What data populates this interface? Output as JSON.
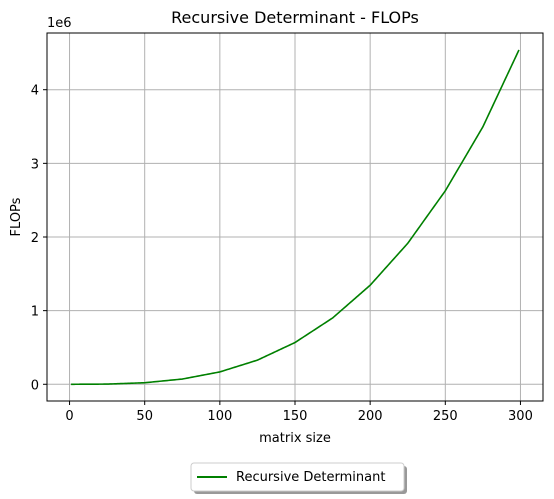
{
  "chart_data": {
    "type": "line",
    "title": "Recursive Determinant - FLOPs",
    "xlabel": "matrix size",
    "ylabel": "FLOPs",
    "y_offset_label": "1e6",
    "y_scale_factor": 1000000,
    "xlim": [
      -15,
      315
    ],
    "ylim": [
      -0.227,
      4.77
    ],
    "x_ticks": [
      0,
      50,
      100,
      150,
      200,
      250,
      300
    ],
    "y_ticks": [
      0,
      1,
      2,
      3,
      4
    ],
    "grid": true,
    "legend_position": "bottom-center, below plot",
    "series": [
      {
        "name": "Recursive Determinant",
        "color": "#008000",
        "points": [
          [
            1,
            0
          ],
          [
            25,
            2600
          ],
          [
            50,
            21000
          ],
          [
            75,
            71000
          ],
          [
            100,
            168000
          ],
          [
            125,
            328000
          ],
          [
            150,
            567000
          ],
          [
            175,
            900000
          ],
          [
            200,
            1345000
          ],
          [
            225,
            1914000
          ],
          [
            250,
            2627000
          ],
          [
            275,
            3496000
          ],
          [
            299,
            4540000
          ]
        ]
      }
    ]
  }
}
